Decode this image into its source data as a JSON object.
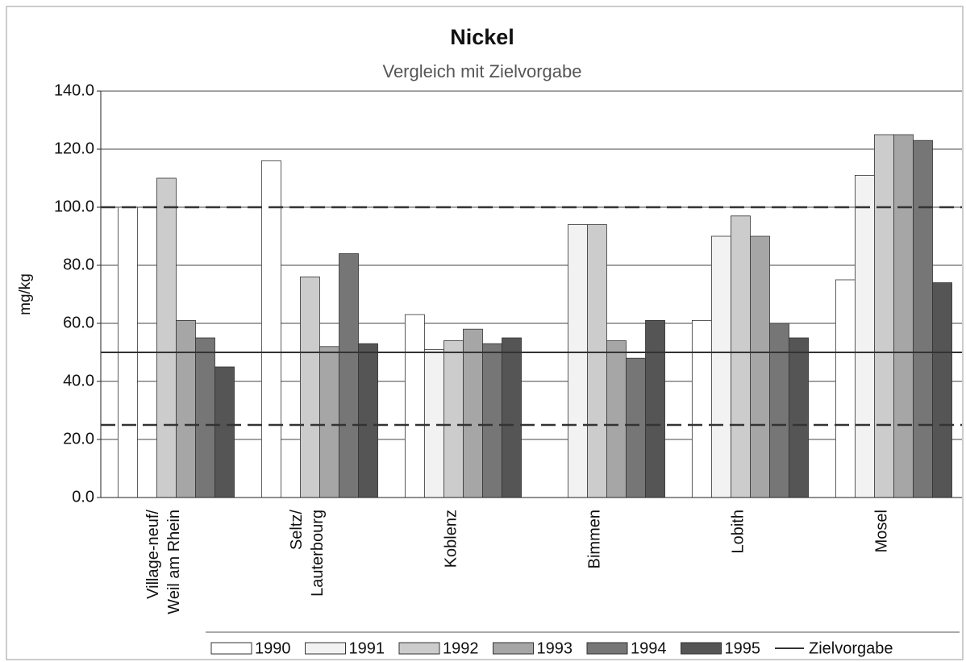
{
  "chart_data": {
    "type": "bar",
    "title": "Nickel",
    "subtitle": "Vergleich mit Zielvorgabe",
    "ylabel": "mg/kg",
    "categories": [
      "Village-neuf/ Weil am Rhein",
      "Seltz/ Lauterbourg",
      "Koblenz",
      "Bimmen",
      "Lobith",
      "Mosel"
    ],
    "series": [
      {
        "name": "1990",
        "color": "#ffffff",
        "values": [
          100,
          116,
          63,
          null,
          61,
          75
        ]
      },
      {
        "name": "1991",
        "color": "#f2f2f2",
        "values": [
          null,
          null,
          51,
          94,
          90,
          111
        ]
      },
      {
        "name": "1992",
        "color": "#cccccc",
        "values": [
          110,
          76,
          54,
          94,
          97,
          125
        ]
      },
      {
        "name": "1993",
        "color": "#a6a6a6",
        "values": [
          61,
          52,
          58,
          54,
          90,
          125
        ]
      },
      {
        "name": "1994",
        "color": "#767676",
        "values": [
          55,
          84,
          53,
          48,
          60,
          123
        ]
      },
      {
        "name": "1995",
        "color": "#555555",
        "values": [
          45,
          53,
          55,
          61,
          55,
          74
        ]
      }
    ],
    "target": {
      "name": "Zielvorgabe",
      "value": 50,
      "color": "#333333"
    },
    "reference_lines": [
      {
        "value": 100,
        "style": "dashed"
      },
      {
        "value": 25,
        "style": "dashed"
      }
    ],
    "ylim": [
      0,
      140
    ],
    "yticks": [
      {
        "value": 0,
        "label": "0.0"
      },
      {
        "value": 20,
        "label": "20.0"
      },
      {
        "value": 40,
        "label": "40.0"
      },
      {
        "value": 60,
        "label": "60.0"
      },
      {
        "value": 80,
        "label": "80.0"
      },
      {
        "value": 100,
        "label": "100.0"
      },
      {
        "value": 120,
        "label": "120.0"
      },
      {
        "value": 140,
        "label": "140.0"
      }
    ],
    "grid": true,
    "legend": "bottom"
  }
}
